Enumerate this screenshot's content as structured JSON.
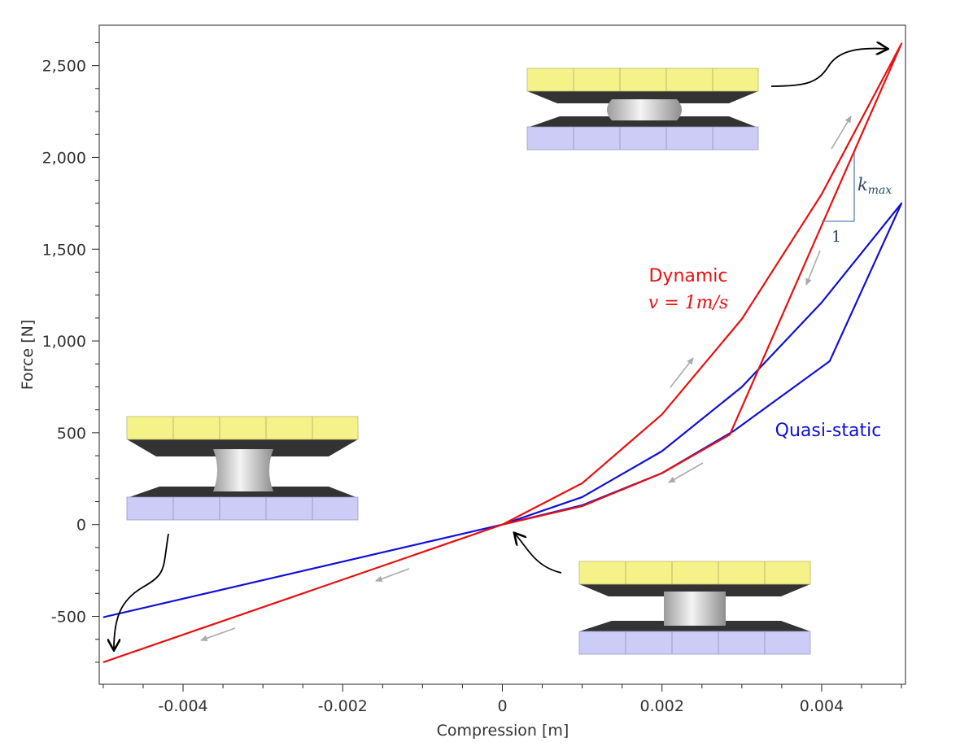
{
  "chart_data": {
    "type": "line",
    "xlabel": "Compression [m]",
    "ylabel": "Force [N]",
    "xlim": [
      -0.00505,
      0.00505
    ],
    "ylim": [
      -870,
      2720
    ],
    "x_ticks": [
      -0.004,
      -0.002,
      0,
      0.002,
      0.004
    ],
    "x_tick_labels": [
      "-0.004",
      "-0.002",
      "0",
      "0.002",
      "0.004"
    ],
    "y_ticks": [
      -500,
      0,
      500,
      1000,
      1500,
      2000,
      2500
    ],
    "y_tick_labels": [
      "-500",
      "0",
      "500",
      "1,000",
      "1,500",
      "2,000",
      "2,500"
    ],
    "grid": false,
    "series": [
      {
        "name": "Quasi-static",
        "color": "#1010d8",
        "points": [
          [
            -0.005,
            -505
          ],
          [
            0,
            0
          ],
          [
            0.001,
            150
          ],
          [
            0.002,
            400
          ],
          [
            0.003,
            750
          ],
          [
            0.004,
            1210
          ],
          [
            0.005,
            1750
          ],
          [
            0.0041,
            890
          ],
          [
            0.0029,
            510
          ],
          [
            0.002,
            280
          ],
          [
            0.001,
            105
          ],
          [
            0,
            0
          ],
          [
            -0.005,
            -505
          ]
        ]
      },
      {
        "name": "Dynamic",
        "color": "#e81010",
        "points": [
          [
            -0.005,
            -750
          ],
          [
            0,
            0
          ],
          [
            0.001,
            225
          ],
          [
            0.002,
            600
          ],
          [
            0.003,
            1120
          ],
          [
            0.004,
            1800
          ],
          [
            0.005,
            2620
          ],
          [
            0.00285,
            490
          ],
          [
            0.002,
            280
          ],
          [
            0.001,
            100
          ],
          [
            0,
            0
          ],
          [
            -0.005,
            -750
          ]
        ]
      }
    ],
    "annotations": {
      "dynamic_label": "Dynamic",
      "dynamic_equation": "v = 1m/s",
      "quasi_label": "Quasi-static",
      "slope_label": "k",
      "slope_subscript": "max",
      "slope_run_label": "1"
    }
  }
}
